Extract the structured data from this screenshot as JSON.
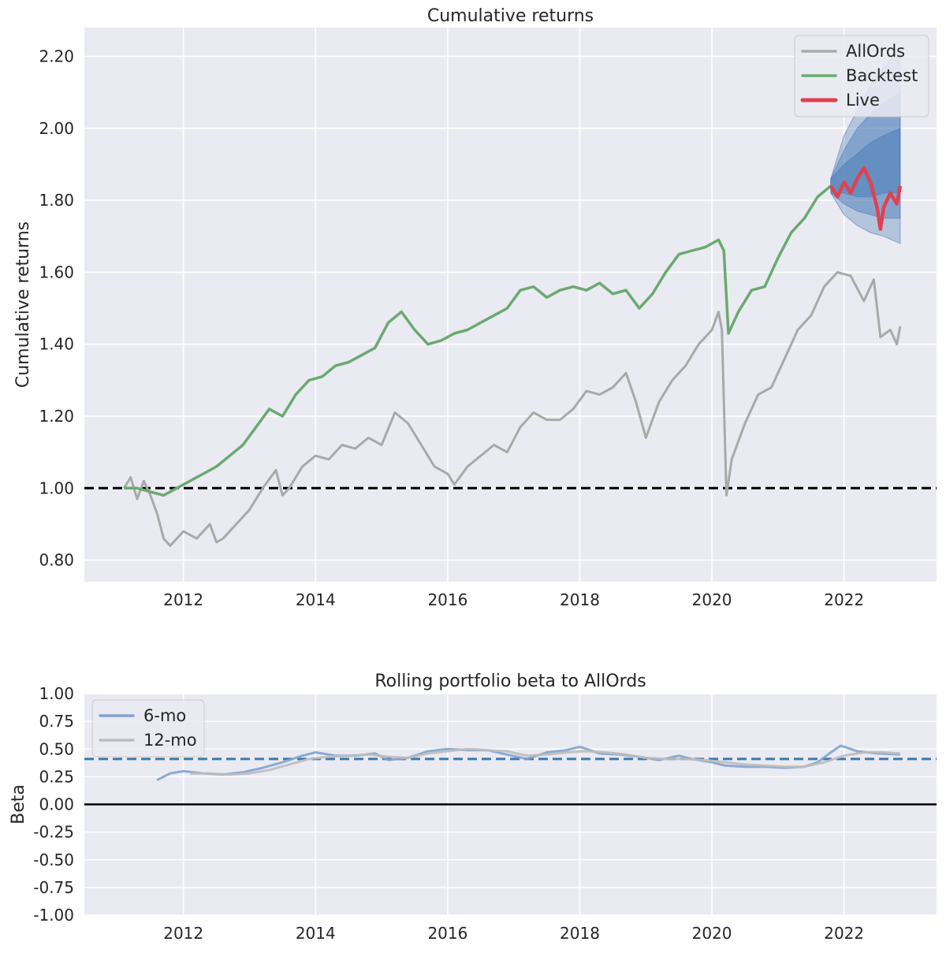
{
  "chart_data": [
    {
      "type": "line",
      "title": "Cumulative returns",
      "xlabel": "",
      "ylabel": "Cumulative returns",
      "xlim": [
        2010.5,
        2023.4
      ],
      "ylim": [
        0.74,
        2.28
      ],
      "x_ticks": [
        2012,
        2014,
        2016,
        2018,
        2020,
        2022
      ],
      "x_tick_labels": [
        "2012",
        "2014",
        "2016",
        "2018",
        "2020",
        "2022"
      ],
      "y_ticks": [
        0.8,
        1.0,
        1.2,
        1.4,
        1.6,
        1.8,
        2.0,
        2.2
      ],
      "y_tick_labels": [
        "0.80",
        "1.00",
        "1.20",
        "1.40",
        "1.60",
        "1.80",
        "2.00",
        "2.20"
      ],
      "grid": true,
      "legend_position": "top-right",
      "reference_line": {
        "y": 1.0,
        "style": "dashed",
        "color": "#000000"
      },
      "series": [
        {
          "name": "AllOrds",
          "color": "#a9a9a9",
          "points": [
            [
              2011.1,
              1.0
            ],
            [
              2011.2,
              1.03
            ],
            [
              2011.3,
              0.97
            ],
            [
              2011.4,
              1.02
            ],
            [
              2011.5,
              0.98
            ],
            [
              2011.6,
              0.93
            ],
            [
              2011.7,
              0.86
            ],
            [
              2011.8,
              0.84
            ],
            [
              2011.9,
              0.86
            ],
            [
              2012.0,
              0.88
            ],
            [
              2012.2,
              0.86
            ],
            [
              2012.4,
              0.9
            ],
            [
              2012.5,
              0.85
            ],
            [
              2012.6,
              0.86
            ],
            [
              2012.8,
              0.9
            ],
            [
              2013.0,
              0.94
            ],
            [
              2013.2,
              1.0
            ],
            [
              2013.4,
              1.05
            ],
            [
              2013.5,
              0.98
            ],
            [
              2013.6,
              1.0
            ],
            [
              2013.8,
              1.06
            ],
            [
              2014.0,
              1.09
            ],
            [
              2014.2,
              1.08
            ],
            [
              2014.4,
              1.12
            ],
            [
              2014.6,
              1.11
            ],
            [
              2014.8,
              1.14
            ],
            [
              2015.0,
              1.12
            ],
            [
              2015.2,
              1.21
            ],
            [
              2015.4,
              1.18
            ],
            [
              2015.6,
              1.12
            ],
            [
              2015.8,
              1.06
            ],
            [
              2016.0,
              1.04
            ],
            [
              2016.1,
              1.01
            ],
            [
              2016.3,
              1.06
            ],
            [
              2016.5,
              1.09
            ],
            [
              2016.7,
              1.12
            ],
            [
              2016.9,
              1.1
            ],
            [
              2017.1,
              1.17
            ],
            [
              2017.3,
              1.21
            ],
            [
              2017.5,
              1.19
            ],
            [
              2017.7,
              1.19
            ],
            [
              2017.9,
              1.22
            ],
            [
              2018.1,
              1.27
            ],
            [
              2018.3,
              1.26
            ],
            [
              2018.5,
              1.28
            ],
            [
              2018.7,
              1.32
            ],
            [
              2018.85,
              1.24
            ],
            [
              2019.0,
              1.14
            ],
            [
              2019.2,
              1.24
            ],
            [
              2019.4,
              1.3
            ],
            [
              2019.6,
              1.34
            ],
            [
              2019.8,
              1.4
            ],
            [
              2020.0,
              1.44
            ],
            [
              2020.1,
              1.49
            ],
            [
              2020.15,
              1.44
            ],
            [
              2020.22,
              0.98
            ],
            [
              2020.3,
              1.08
            ],
            [
              2020.5,
              1.18
            ],
            [
              2020.7,
              1.26
            ],
            [
              2020.9,
              1.28
            ],
            [
              2021.1,
              1.36
            ],
            [
              2021.3,
              1.44
            ],
            [
              2021.5,
              1.48
            ],
            [
              2021.7,
              1.56
            ],
            [
              2021.9,
              1.6
            ],
            [
              2022.1,
              1.59
            ],
            [
              2022.3,
              1.52
            ],
            [
              2022.45,
              1.58
            ],
            [
              2022.55,
              1.42
            ],
            [
              2022.7,
              1.44
            ],
            [
              2022.8,
              1.4
            ],
            [
              2022.85,
              1.45
            ]
          ]
        },
        {
          "name": "Backtest",
          "color": "#6aaa70",
          "points": [
            [
              2011.1,
              1.0
            ],
            [
              2011.3,
              1.0
            ],
            [
              2011.5,
              0.99
            ],
            [
              2011.7,
              0.98
            ],
            [
              2011.9,
              1.0
            ],
            [
              2012.1,
              1.02
            ],
            [
              2012.3,
              1.04
            ],
            [
              2012.5,
              1.06
            ],
            [
              2012.7,
              1.09
            ],
            [
              2012.9,
              1.12
            ],
            [
              2013.1,
              1.17
            ],
            [
              2013.3,
              1.22
            ],
            [
              2013.5,
              1.2
            ],
            [
              2013.7,
              1.26
            ],
            [
              2013.9,
              1.3
            ],
            [
              2014.1,
              1.31
            ],
            [
              2014.3,
              1.34
            ],
            [
              2014.5,
              1.35
            ],
            [
              2014.7,
              1.37
            ],
            [
              2014.9,
              1.39
            ],
            [
              2015.1,
              1.46
            ],
            [
              2015.3,
              1.49
            ],
            [
              2015.5,
              1.44
            ],
            [
              2015.7,
              1.4
            ],
            [
              2015.9,
              1.41
            ],
            [
              2016.1,
              1.43
            ],
            [
              2016.3,
              1.44
            ],
            [
              2016.5,
              1.46
            ],
            [
              2016.7,
              1.48
            ],
            [
              2016.9,
              1.5
            ],
            [
              2017.1,
              1.55
            ],
            [
              2017.3,
              1.56
            ],
            [
              2017.5,
              1.53
            ],
            [
              2017.7,
              1.55
            ],
            [
              2017.9,
              1.56
            ],
            [
              2018.1,
              1.55
            ],
            [
              2018.3,
              1.57
            ],
            [
              2018.5,
              1.54
            ],
            [
              2018.7,
              1.55
            ],
            [
              2018.9,
              1.5
            ],
            [
              2019.1,
              1.54
            ],
            [
              2019.3,
              1.6
            ],
            [
              2019.5,
              1.65
            ],
            [
              2019.7,
              1.66
            ],
            [
              2019.9,
              1.67
            ],
            [
              2020.1,
              1.69
            ],
            [
              2020.18,
              1.66
            ],
            [
              2020.25,
              1.43
            ],
            [
              2020.4,
              1.49
            ],
            [
              2020.6,
              1.55
            ],
            [
              2020.8,
              1.56
            ],
            [
              2021.0,
              1.64
            ],
            [
              2021.2,
              1.71
            ],
            [
              2021.4,
              1.75
            ],
            [
              2021.6,
              1.81
            ],
            [
              2021.8,
              1.84
            ]
          ]
        },
        {
          "name": "Live",
          "color": "#e0414f",
          "points": [
            [
              2021.8,
              1.84
            ],
            [
              2021.9,
              1.81
            ],
            [
              2022.0,
              1.85
            ],
            [
              2022.1,
              1.82
            ],
            [
              2022.2,
              1.86
            ],
            [
              2022.3,
              1.89
            ],
            [
              2022.4,
              1.85
            ],
            [
              2022.5,
              1.78
            ],
            [
              2022.55,
              1.72
            ],
            [
              2022.6,
              1.78
            ],
            [
              2022.7,
              1.82
            ],
            [
              2022.8,
              1.79
            ],
            [
              2022.85,
              1.84
            ]
          ]
        }
      ],
      "cone": {
        "color": "#4c7db8",
        "x": [
          2021.8,
          2022.0,
          2022.2,
          2022.4,
          2022.6,
          2022.85
        ],
        "bands": [
          {
            "upper": [
              1.86,
              1.98,
              2.05,
              2.12,
              2.17,
              2.22
            ],
            "lower": [
              1.82,
              1.76,
              1.73,
              1.71,
              1.7,
              1.68
            ]
          },
          {
            "upper": [
              1.86,
              1.94,
              2.0,
              2.04,
              2.07,
              2.1
            ],
            "lower": [
              1.82,
              1.79,
              1.77,
              1.76,
              1.75,
              1.75
            ]
          },
          {
            "upper": [
              1.86,
              1.9,
              1.93,
              1.96,
              1.98,
              2.0
            ],
            "lower": [
              1.82,
              1.82,
              1.81,
              1.81,
              1.82,
              1.82
            ]
          }
        ]
      }
    },
    {
      "type": "line",
      "title": "Rolling portfolio beta to AllOrds",
      "xlabel": "",
      "ylabel": "Beta",
      "xlim": [
        2010.5,
        2023.4
      ],
      "ylim": [
        -1.0,
        1.0
      ],
      "x_ticks": [
        2012,
        2014,
        2016,
        2018,
        2020,
        2022
      ],
      "x_tick_labels": [
        "2012",
        "2014",
        "2016",
        "2018",
        "2020",
        "2022"
      ],
      "y_ticks": [
        1.0,
        0.75,
        0.5,
        0.25,
        0.0,
        -0.25,
        -0.5,
        -0.75,
        -1.0
      ],
      "y_tick_labels": [
        "1.00",
        "0.75",
        "0.50",
        "0.25",
        "0.00",
        "-0.25",
        "-0.50",
        "-0.75",
        "-1.00"
      ],
      "grid": true,
      "legend_position": "top-left",
      "reference_lines": [
        {
          "y": 0.0,
          "style": "solid",
          "color": "#000000"
        },
        {
          "y": 0.41,
          "style": "dashed",
          "color": "#3b79b0"
        }
      ],
      "series": [
        {
          "name": "6-mo",
          "color": "#7fa3cf",
          "points": [
            [
              2011.6,
              0.22
            ],
            [
              2011.8,
              0.28
            ],
            [
              2012.0,
              0.3
            ],
            [
              2012.3,
              0.28
            ],
            [
              2012.6,
              0.27
            ],
            [
              2012.9,
              0.29
            ],
            [
              2013.2,
              0.33
            ],
            [
              2013.5,
              0.38
            ],
            [
              2013.8,
              0.44
            ],
            [
              2014.0,
              0.47
            ],
            [
              2014.3,
              0.44
            ],
            [
              2014.6,
              0.44
            ],
            [
              2014.9,
              0.46
            ],
            [
              2015.1,
              0.4
            ],
            [
              2015.4,
              0.42
            ],
            [
              2015.7,
              0.48
            ],
            [
              2016.0,
              0.5
            ],
            [
              2016.3,
              0.49
            ],
            [
              2016.6,
              0.49
            ],
            [
              2016.9,
              0.45
            ],
            [
              2017.2,
              0.41
            ],
            [
              2017.5,
              0.47
            ],
            [
              2017.8,
              0.49
            ],
            [
              2018.0,
              0.52
            ],
            [
              2018.3,
              0.46
            ],
            [
              2018.6,
              0.45
            ],
            [
              2018.9,
              0.43
            ],
            [
              2019.2,
              0.4
            ],
            [
              2019.5,
              0.44
            ],
            [
              2019.7,
              0.41
            ],
            [
              2020.0,
              0.38
            ],
            [
              2020.2,
              0.35
            ],
            [
              2020.5,
              0.34
            ],
            [
              2020.8,
              0.34
            ],
            [
              2021.1,
              0.33
            ],
            [
              2021.4,
              0.34
            ],
            [
              2021.6,
              0.38
            ],
            [
              2021.8,
              0.47
            ],
            [
              2021.95,
              0.53
            ],
            [
              2022.2,
              0.48
            ],
            [
              2022.5,
              0.46
            ],
            [
              2022.85,
              0.45
            ]
          ]
        },
        {
          "name": "12-mo",
          "color": "#bcbcbc",
          "points": [
            [
              2012.1,
              0.28
            ],
            [
              2012.4,
              0.28
            ],
            [
              2012.7,
              0.27
            ],
            [
              2013.0,
              0.28
            ],
            [
              2013.3,
              0.31
            ],
            [
              2013.6,
              0.36
            ],
            [
              2013.9,
              0.41
            ],
            [
              2014.2,
              0.43
            ],
            [
              2014.5,
              0.44
            ],
            [
              2014.8,
              0.45
            ],
            [
              2015.1,
              0.43
            ],
            [
              2015.4,
              0.42
            ],
            [
              2015.7,
              0.46
            ],
            [
              2016.0,
              0.48
            ],
            [
              2016.3,
              0.5
            ],
            [
              2016.6,
              0.49
            ],
            [
              2016.9,
              0.48
            ],
            [
              2017.2,
              0.44
            ],
            [
              2017.5,
              0.45
            ],
            [
              2017.8,
              0.47
            ],
            [
              2018.1,
              0.48
            ],
            [
              2018.4,
              0.47
            ],
            [
              2018.7,
              0.45
            ],
            [
              2019.0,
              0.42
            ],
            [
              2019.3,
              0.41
            ],
            [
              2019.6,
              0.41
            ],
            [
              2019.9,
              0.4
            ],
            [
              2020.2,
              0.38
            ],
            [
              2020.5,
              0.36
            ],
            [
              2020.8,
              0.35
            ],
            [
              2021.1,
              0.34
            ],
            [
              2021.4,
              0.34
            ],
            [
              2021.7,
              0.38
            ],
            [
              2022.0,
              0.44
            ],
            [
              2022.3,
              0.47
            ],
            [
              2022.6,
              0.47
            ],
            [
              2022.85,
              0.46
            ]
          ]
        }
      ]
    }
  ]
}
